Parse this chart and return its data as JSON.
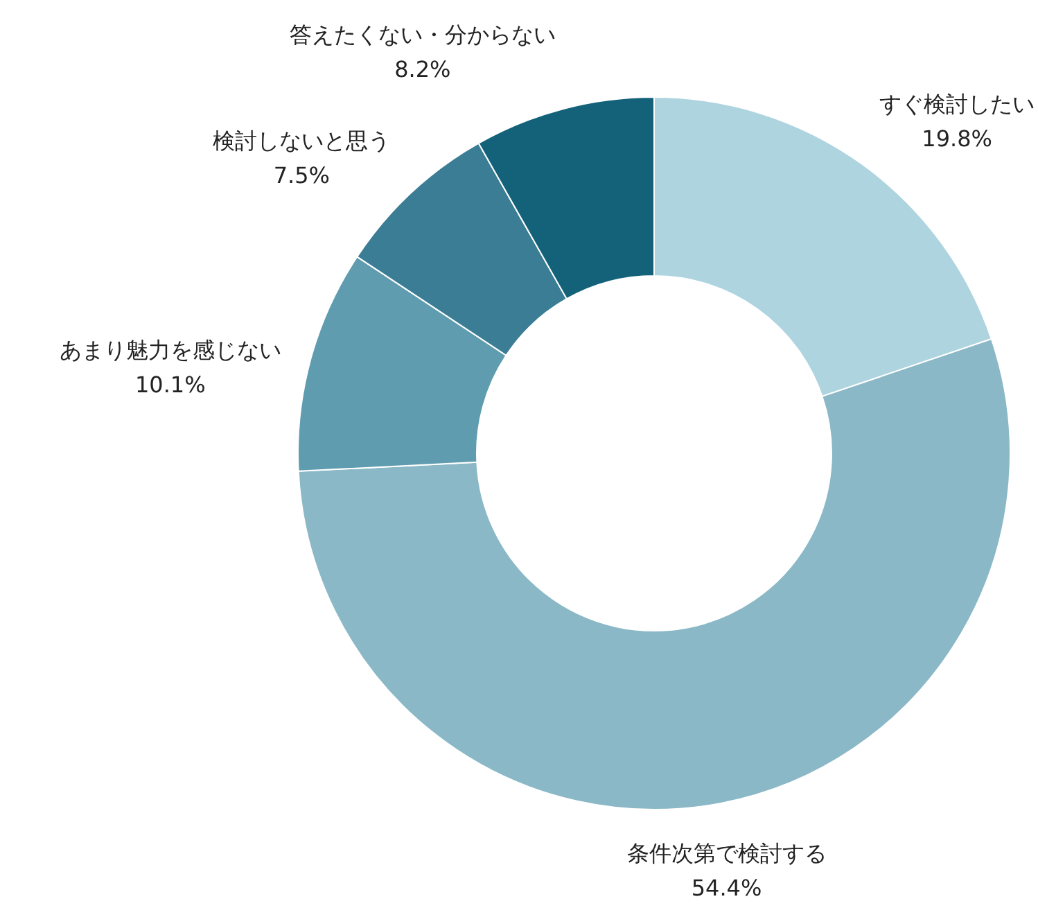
{
  "chart_data": {
    "type": "donut",
    "categories": [
      "すぐ検討したい",
      "条件次第で検討する",
      "あまり魅力を感じない",
      "検討しないと思う",
      "答えたくない・分からない"
    ],
    "values": [
      19.8,
      54.4,
      10.1,
      7.5,
      8.2
    ],
    "colors": [
      "#aed4e0",
      "#8ab8c7",
      "#5f9caf",
      "#3a7d94",
      "#13627a"
    ],
    "value_labels": [
      "19.8%",
      "54.4%",
      "10.1%",
      "7.5%",
      "8.2%"
    ]
  }
}
